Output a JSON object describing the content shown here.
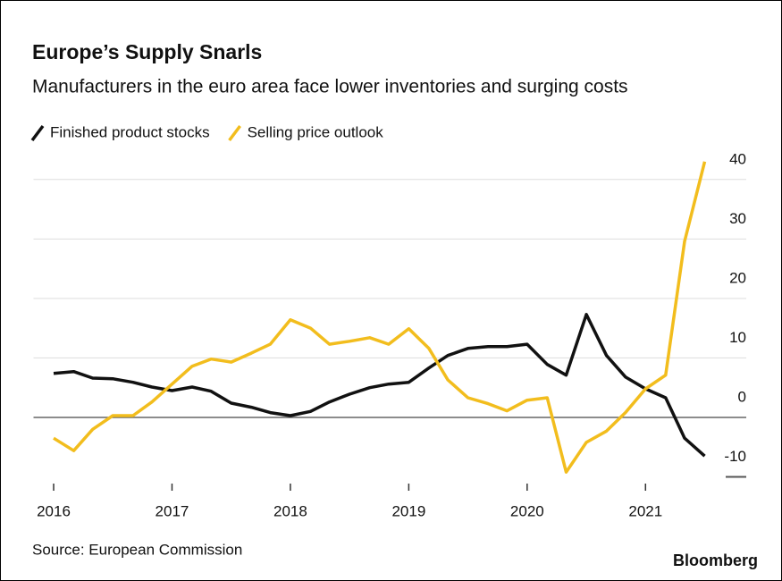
{
  "chart_data": {
    "type": "line",
    "title": "Europe’s Supply Snarls",
    "subtitle": "Manufacturers in the euro area face lower inventories and surging costs",
    "source": "Source: European Commission",
    "brand": "Bloomberg",
    "x": [
      2016.0,
      2016.17,
      2016.33,
      2016.5,
      2016.67,
      2016.83,
      2017.0,
      2017.17,
      2017.33,
      2017.5,
      2017.67,
      2017.83,
      2018.0,
      2018.17,
      2018.33,
      2018.5,
      2018.67,
      2018.83,
      2019.0,
      2019.17,
      2019.33,
      2019.5,
      2019.67,
      2019.83,
      2020.0,
      2020.17,
      2020.33,
      2020.5,
      2020.67,
      2020.83,
      2021.0,
      2021.17,
      2021.33,
      2021.5
    ],
    "series": [
      {
        "name": "Finished product stocks",
        "color": "#111111",
        "values": [
          7.4,
          7.7,
          6.6,
          6.5,
          5.9,
          5.1,
          4.5,
          5.1,
          4.4,
          2.4,
          1.7,
          0.8,
          0.3,
          1.0,
          2.6,
          3.9,
          5.0,
          5.6,
          5.9,
          8.3,
          10.4,
          11.6,
          11.9,
          11.9,
          12.3,
          8.9,
          7.1,
          17.3,
          10.4,
          6.8,
          4.8,
          3.3,
          -3.5,
          -6.5
        ]
      },
      {
        "name": "Selling price outlook",
        "color": "#f2bd1d",
        "values": [
          -3.5,
          -5.6,
          -2.0,
          0.3,
          0.3,
          2.6,
          5.6,
          8.6,
          9.8,
          9.3,
          10.8,
          12.3,
          16.4,
          15.0,
          12.3,
          12.8,
          13.4,
          12.3,
          14.9,
          11.6,
          6.3,
          3.3,
          2.3,
          1.1,
          2.9,
          3.3,
          -9.2,
          -4.2,
          -2.3,
          0.8,
          4.8,
          7.1,
          29.6,
          43.0
        ]
      }
    ],
    "xlim": [
      2015.83,
      2021.7
    ],
    "xticks": [
      2016,
      2017,
      2018,
      2019,
      2020,
      2021
    ],
    "ylim": [
      -10,
      45
    ],
    "yticks": [
      -10,
      0,
      10,
      20,
      30,
      40
    ],
    "grid": true
  }
}
